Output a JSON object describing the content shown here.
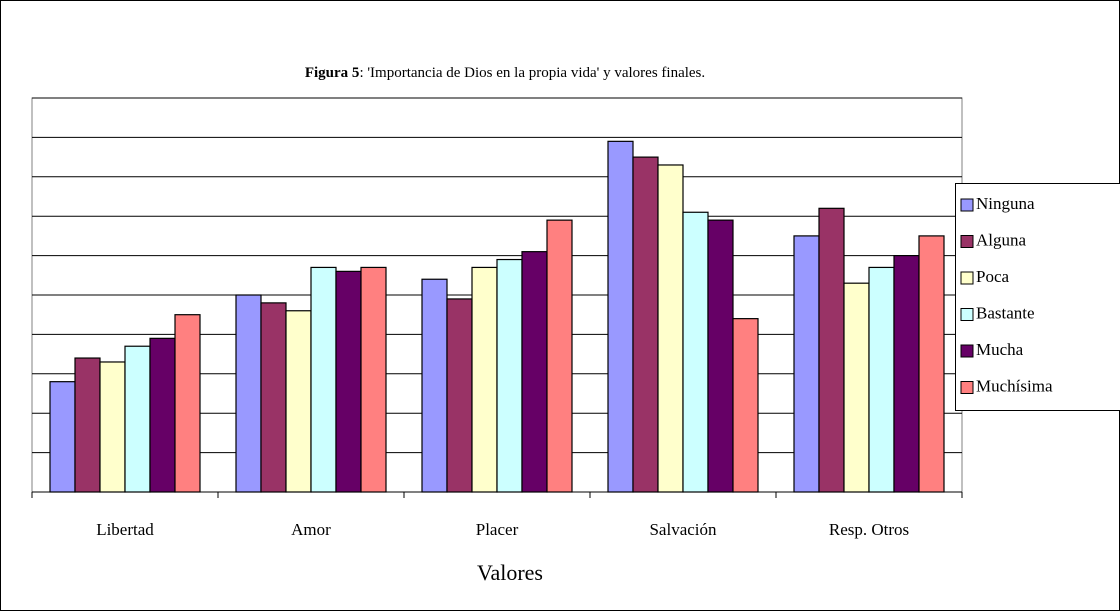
{
  "chart_data": {
    "type": "bar",
    "title_label": "Figura 5",
    "title": ": 'Importancia de Dios en la propia vida' y valores finales.",
    "x_label": "Valores",
    "categories": [
      "Libertad",
      "Amor",
      "Placer",
      "Salvación",
      "Resp. Otros"
    ],
    "series": [
      {
        "name": "Ninguna",
        "color": "#9999ff",
        "values": [
          2.8,
          5.0,
          5.4,
          8.9,
          6.5
        ]
      },
      {
        "name": "Alguna",
        "color": "#993366",
        "values": [
          3.4,
          4.8,
          4.9,
          8.5,
          7.2
        ]
      },
      {
        "name": "Poca",
        "color": "#ffffcc",
        "values": [
          3.3,
          4.6,
          5.7,
          8.3,
          5.3
        ]
      },
      {
        "name": "Bastante",
        "color": "#ccffff",
        "values": [
          3.7,
          5.7,
          5.9,
          7.1,
          5.7
        ]
      },
      {
        "name": "Mucha",
        "color": "#660066",
        "values": [
          3.9,
          5.6,
          6.1,
          6.9,
          6.0
        ]
      },
      {
        "name": "Muchísima",
        "color": "#ff8080",
        "values": [
          4.5,
          5.7,
          6.9,
          4.4,
          6.5
        ]
      }
    ],
    "ylim": [
      0,
      10
    ],
    "yticks": [
      0,
      1,
      2,
      3,
      4,
      5,
      6,
      7,
      8,
      9,
      10
    ],
    "grid": true,
    "legend": "right"
  }
}
